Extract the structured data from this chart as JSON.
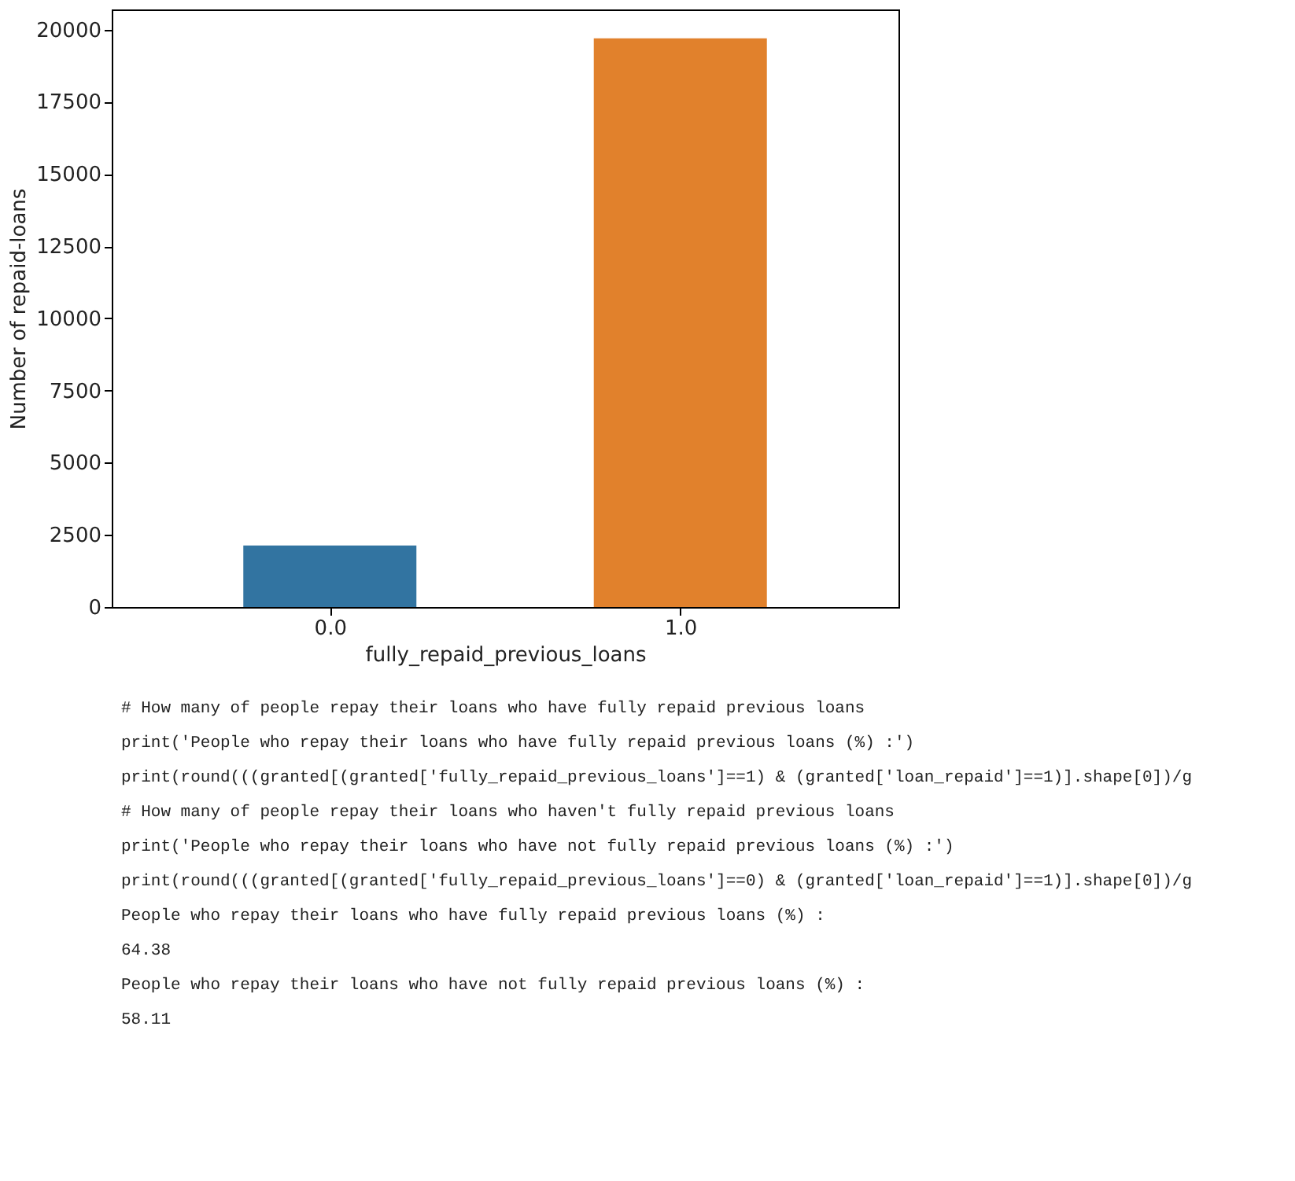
{
  "chart_data": {
    "type": "bar",
    "xlabel": "fully_repaid_previous_loans",
    "ylabel": "Number of repaid-loans",
    "categories": [
      "0.0",
      "1.0"
    ],
    "values": [
      2130,
      19700
    ],
    "colors": [
      "#3274a1",
      "#e1812c"
    ],
    "ylim": [
      0,
      20700
    ],
    "yticks": [
      0,
      2500,
      5000,
      7500,
      10000,
      12500,
      15000,
      17500,
      20000
    ],
    "grid": false,
    "annotations": [
      "# How many of people repay their loans who have fully repaid previous loans",
      "print('People who repay their loans who have fully repaid previous loans (%) :')",
      "print(round(((granted[(granted['fully_repaid_previous_loans']==1) & (granted['loan_repaid']==1)].shape[0])/g",
      "# How many of people repay their loans who haven't fully repaid previous loans",
      "print('People who repay their loans who have not fully repaid previous loans (%) :')",
      "print(round(((granted[(granted['fully_repaid_previous_loans']==0) & (granted['loan_repaid']==1)].shape[0])/g",
      "People who repay their loans who have fully repaid previous loans (%) :",
      "64.38",
      "People who repay their loans who have not fully repaid previous loans (%) :",
      "58.11"
    ]
  }
}
